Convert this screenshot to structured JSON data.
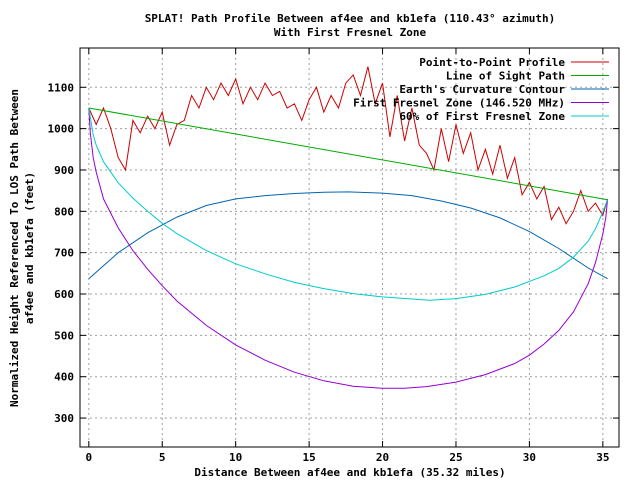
{
  "chart_data": {
    "type": "line",
    "title": "SPLAT! Path Profile Between af4ee and kb1efa (110.43° azimuth)",
    "subtitle": "With First Fresnel Zone",
    "xlabel": "Distance Between af4ee and kb1efa (35.32 miles)",
    "ylabel_lines": [
      "Normalized Height Referenced To LOS Path Between",
      "af4ee and kb1efa (feet)"
    ],
    "xlim": [
      -0.6,
      36.1
    ],
    "ylim": [
      230,
      1195
    ],
    "xticks": [
      0,
      5,
      10,
      15,
      20,
      25,
      30,
      35
    ],
    "yticks": [
      300,
      400,
      500,
      600,
      700,
      800,
      900,
      1000,
      1100
    ],
    "grid": true,
    "legend_position": "top-right",
    "series": [
      {
        "name": "Point-to-Point Profile",
        "color": "#cc0000",
        "x": [
          0,
          0.5,
          1.0,
          1.5,
          2.0,
          2.5,
          3.0,
          3.5,
          4.0,
          4.5,
          5.0,
          5.5,
          6.0,
          6.5,
          7.0,
          7.5,
          8.0,
          8.5,
          9.0,
          9.5,
          10.0,
          10.5,
          11.0,
          11.5,
          12.0,
          12.5,
          13.0,
          13.5,
          14.0,
          14.5,
          15.0,
          15.5,
          16.0,
          16.5,
          17.0,
          17.5,
          18.0,
          18.5,
          19.0,
          19.5,
          20.0,
          20.5,
          21.0,
          21.5,
          22.0,
          22.5,
          23.0,
          23.5,
          24.0,
          24.5,
          25.0,
          25.5,
          26.0,
          26.5,
          27.0,
          27.5,
          28.0,
          28.5,
          29.0,
          29.5,
          30.0,
          30.5,
          31.0,
          31.5,
          32.0,
          32.5,
          33.0,
          33.5,
          34.0,
          34.5,
          35.0,
          35.32
        ],
        "y": [
          1050,
          1010,
          1050,
          1000,
          930,
          900,
          1020,
          990,
          1030,
          1000,
          1040,
          960,
          1010,
          1020,
          1080,
          1050,
          1100,
          1070,
          1110,
          1080,
          1120,
          1060,
          1100,
          1070,
          1110,
          1080,
          1090,
          1050,
          1060,
          1020,
          1070,
          1100,
          1040,
          1080,
          1050,
          1110,
          1130,
          1080,
          1150,
          1060,
          1110,
          980,
          1080,
          970,
          1050,
          960,
          940,
          900,
          1000,
          920,
          1010,
          940,
          990,
          900,
          950,
          890,
          960,
          880,
          930,
          840,
          870,
          830,
          860,
          780,
          810,
          770,
          800,
          850,
          800,
          820,
          790,
          830
        ]
      },
      {
        "name": "Line of Sight Path",
        "color": "#00aa00",
        "x": [
          0,
          35.32
        ],
        "y": [
          1050,
          828
        ]
      },
      {
        "name": "Earth's Curvature Contour",
        "color": "#0066b3",
        "x": [
          0,
          2,
          4,
          6,
          8,
          10,
          12,
          14,
          16,
          17.66,
          20,
          22,
          24,
          26,
          28,
          30,
          32,
          34,
          35.32
        ],
        "y": [
          637,
          700,
          748,
          786,
          814,
          830,
          838,
          843,
          846,
          847,
          844,
          838,
          825,
          808,
          784,
          751,
          710,
          663,
          637
        ]
      },
      {
        "name": "First Fresnel Zone (146.520 MHz)",
        "color": "#9400d3",
        "x": [
          0,
          0.1,
          0.3,
          0.5,
          1,
          2,
          3,
          4,
          5,
          6,
          8,
          10,
          12,
          14,
          16,
          18,
          20,
          21.5,
          23,
          25,
          27,
          29,
          30,
          31,
          32,
          33,
          34,
          34.5,
          35,
          35.2,
          35.32
        ],
        "y": [
          1050,
          990,
          930,
          895,
          830,
          760,
          705,
          660,
          620,
          583,
          524,
          477,
          440,
          411,
          390,
          377,
          372,
          372,
          376,
          387,
          405,
          432,
          452,
          479,
          512,
          557,
          625,
          676,
          745,
          785,
          828
        ]
      },
      {
        "name": "60% of First Fresnel Zone",
        "color": "#00cccc",
        "x": [
          0,
          0.3,
          0.5,
          1,
          2,
          3,
          4,
          5,
          6,
          8,
          10,
          12,
          14,
          16,
          18,
          20,
          22,
          23.2,
          25,
          27,
          29,
          31,
          32,
          33,
          34,
          34.5,
          35,
          35.32
        ],
        "y": [
          1050,
          985,
          960,
          920,
          869,
          832,
          800,
          771,
          746,
          705,
          673,
          649,
          628,
          613,
          601,
          593,
          588,
          585,
          589,
          599,
          617,
          644,
          662,
          689,
          728,
          758,
          798,
          828
        ]
      }
    ]
  }
}
